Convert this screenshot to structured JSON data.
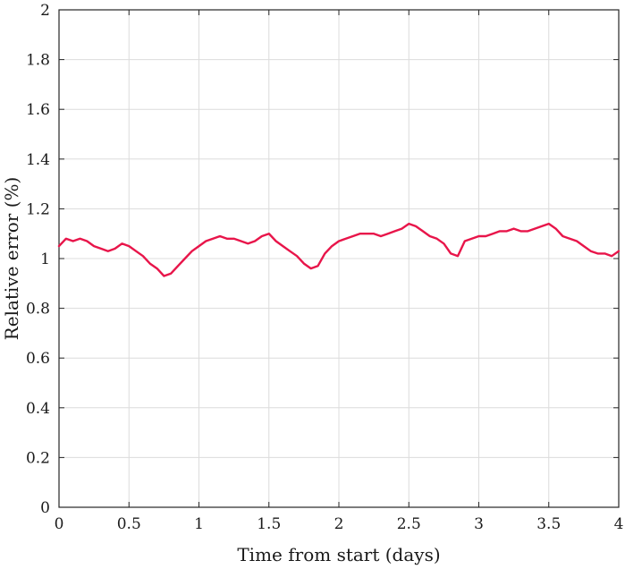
{
  "chart_data": {
    "type": "line",
    "title": "",
    "xlabel": "Time from start (days)",
    "ylabel": "Relative error (%)",
    "xlim": [
      0,
      4
    ],
    "ylim": [
      0,
      2
    ],
    "x_ticks": [
      0,
      0.5,
      1,
      1.5,
      2,
      2.5,
      3,
      3.5,
      4
    ],
    "x_tick_labels": [
      "0",
      "0.5",
      "1",
      "1.5",
      "2",
      "2.5",
      "3",
      "3.5",
      "4"
    ],
    "y_ticks": [
      0,
      0.2,
      0.4,
      0.6,
      0.8,
      1,
      1.2,
      1.4,
      1.6,
      1.8,
      2
    ],
    "y_tick_labels": [
      "0",
      "0.2",
      "0.4",
      "0.6",
      "0.8",
      "1",
      "1.2",
      "1.4",
      "1.6",
      "1.8",
      "2"
    ],
    "grid": true,
    "line_color": "#e8154a",
    "series": [
      {
        "x": [
          0,
          0.05,
          0.1,
          0.15,
          0.2,
          0.25,
          0.3,
          0.35,
          0.4,
          0.45,
          0.5,
          0.55,
          0.6,
          0.65,
          0.7,
          0.75,
          0.8,
          0.85,
          0.9,
          0.95,
          1.0,
          1.05,
          1.1,
          1.15,
          1.2,
          1.25,
          1.3,
          1.35,
          1.4,
          1.45,
          1.5,
          1.55,
          1.6,
          1.65,
          1.7,
          1.75,
          1.8,
          1.85,
          1.9,
          1.95,
          2.0,
          2.05,
          2.1,
          2.15,
          2.2,
          2.25,
          2.3,
          2.35,
          2.4,
          2.45,
          2.5,
          2.55,
          2.6,
          2.65,
          2.7,
          2.75,
          2.8,
          2.85,
          2.9,
          2.95,
          3.0,
          3.05,
          3.1,
          3.15,
          3.2,
          3.25,
          3.3,
          3.35,
          3.4,
          3.45,
          3.5,
          3.55,
          3.6,
          3.65,
          3.7,
          3.75,
          3.8,
          3.85,
          3.9,
          3.95,
          4.0
        ],
        "values": [
          1.05,
          1.08,
          1.07,
          1.08,
          1.07,
          1.05,
          1.04,
          1.03,
          1.04,
          1.06,
          1.05,
          1.03,
          1.01,
          0.98,
          0.96,
          0.93,
          0.94,
          0.97,
          1.0,
          1.03,
          1.05,
          1.07,
          1.08,
          1.09,
          1.08,
          1.08,
          1.07,
          1.06,
          1.07,
          1.09,
          1.1,
          1.07,
          1.05,
          1.03,
          1.01,
          0.98,
          0.96,
          0.97,
          1.02,
          1.05,
          1.07,
          1.08,
          1.09,
          1.1,
          1.1,
          1.1,
          1.09,
          1.1,
          1.11,
          1.12,
          1.14,
          1.13,
          1.11,
          1.09,
          1.08,
          1.06,
          1.02,
          1.01,
          1.07,
          1.08,
          1.09,
          1.09,
          1.1,
          1.11,
          1.11,
          1.12,
          1.11,
          1.11,
          1.12,
          1.13,
          1.14,
          1.12,
          1.09,
          1.08,
          1.07,
          1.05,
          1.03,
          1.02,
          1.02,
          1.01,
          1.03
        ]
      }
    ]
  }
}
